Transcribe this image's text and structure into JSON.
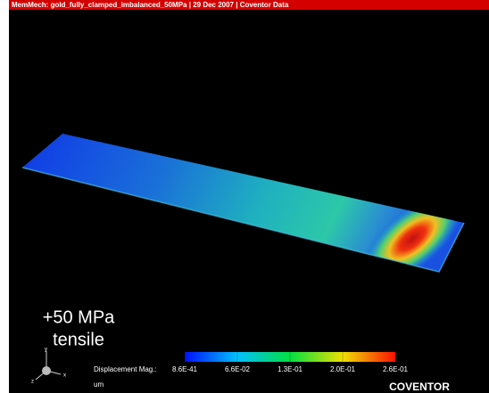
{
  "header": {
    "title": "MemMech: gold_fully_clamped_imbalanced_50MPa | 29 Dec 2007 | Coventor Data"
  },
  "annotation": {
    "line1": "+50 MPa",
    "line2": "tensile"
  },
  "legend": {
    "label": "Displacement Mag.:",
    "ticks": [
      "8.6E-41",
      "6.6E-02",
      "1.3E-01",
      "2.0E-01",
      "2.6E-01"
    ],
    "unit": "um"
  },
  "triad": {
    "x": "x",
    "y": "y",
    "z": "z"
  },
  "logo": "COVENTOR"
}
